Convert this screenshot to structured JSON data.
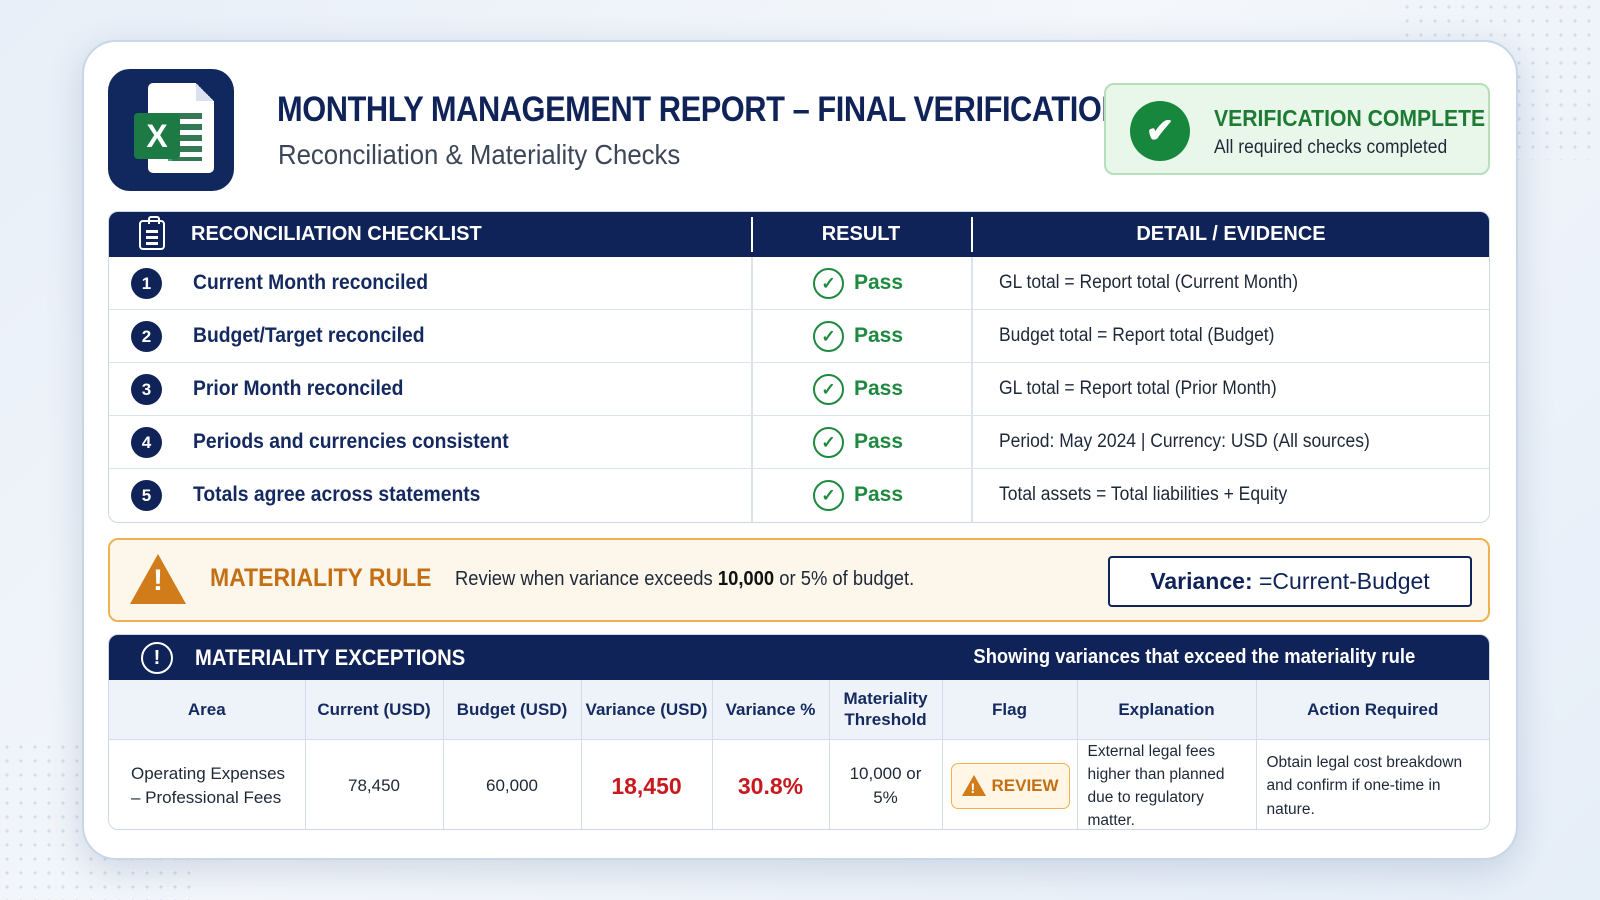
{
  "header": {
    "logo_letter": "X",
    "title": "MONTHLY MANAGEMENT REPORT – FINAL VERIFICATION",
    "subtitle": "Reconciliation & Materiality Checks",
    "status_title": "VERIFICATION COMPLETE",
    "status_detail": "All required checks completed",
    "status_icon": "check-circle-icon",
    "status_color": "#17873d"
  },
  "checklist": {
    "title": "RECONCILIATION CHECKLIST",
    "col_result": "RESULT",
    "col_detail": "DETAIL / EVIDENCE",
    "items": [
      {
        "num": "1",
        "label": "Current Month reconciled",
        "result": "Pass",
        "detail": "GL total = Report total (Current Month)"
      },
      {
        "num": "2",
        "label": "Budget/Target reconciled",
        "result": "Pass",
        "detail": "Budget total = Report total (Budget)"
      },
      {
        "num": "3",
        "label": "Prior Month reconciled",
        "result": "Pass",
        "detail": "GL total = Report total (Prior Month)"
      },
      {
        "num": "4",
        "label": "Periods and currencies consistent",
        "result": "Pass",
        "detail": "Period: May 2024 | Currency: USD (All sources)"
      },
      {
        "num": "5",
        "label": "Totals agree across statements",
        "result": "Pass",
        "detail": "Total assets = Total liabilities + Equity"
      }
    ]
  },
  "materiality_rule": {
    "title": "MATERIALITY RULE",
    "text_before": "Review when variance exceeds ",
    "threshold_amount": "10,000",
    "text_after": " or 5% of budget.",
    "variance_label": "Variance:",
    "variance_formula": " =Current-Budget"
  },
  "exceptions": {
    "title": "MATERIALITY EXCEPTIONS",
    "subtitle": "Showing variances that exceed the materiality rule",
    "columns": [
      "Area",
      "Current (USD)",
      "Budget (USD)",
      "Variance (USD)",
      "Variance %",
      "Materiality Threshold",
      "Flag",
      "Explanation",
      "Action Required"
    ],
    "rows": [
      {
        "area": "Operating Expenses – Professional Fees",
        "current": "78,450",
        "budget": "60,000",
        "variance": "18,450",
        "variance_pct": "30.8%",
        "threshold": "10,000 or 5%",
        "flag": "REVIEW",
        "explanation": "External legal fees higher than planned due to regulatory matter.",
        "action": "Obtain legal cost breakdown and confirm if one-time in nature."
      }
    ]
  }
}
